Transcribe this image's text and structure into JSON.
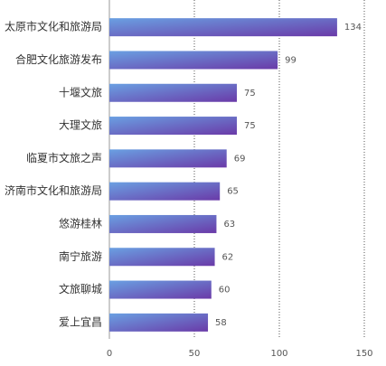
{
  "chart_data": {
    "type": "barh",
    "categories": [
      "太原市文化和旅游局",
      "合肥文化旅游发布",
      "十堰文旅",
      "大理文旅",
      "临夏市文旅之声",
      "济南市文化和旅游局",
      "悠游桂林",
      "南宁旅游",
      "文旅聊城",
      "爱上宜昌"
    ],
    "values": [
      134,
      99,
      75,
      75,
      69,
      65,
      63,
      62,
      60,
      58
    ],
    "gradient": [
      "#6aa0e2",
      "#6a3aa8"
    ],
    "xlim": [
      0,
      150
    ],
    "xticks": [
      0,
      50,
      100,
      150
    ],
    "grid": true
  }
}
